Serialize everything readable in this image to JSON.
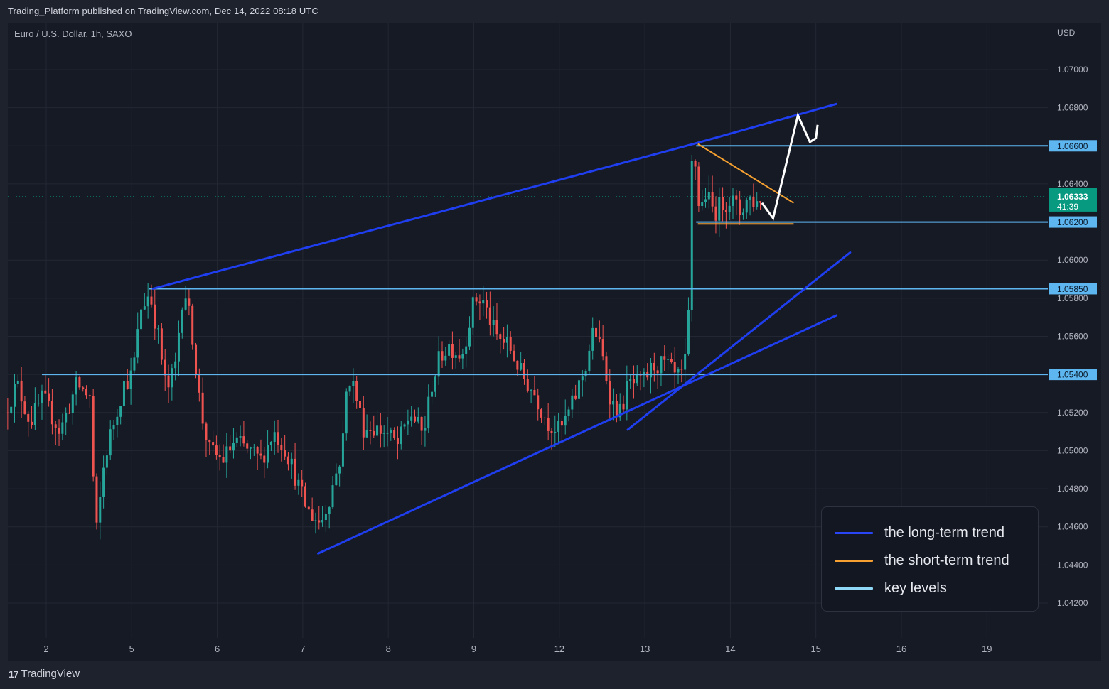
{
  "header": {
    "published": "Trading_Platform published on TradingView.com, Dec 14, 2022 08:18 UTC"
  },
  "chart_header": {
    "symbol": "Euro / U.S. Dollar, 1h, SAXO",
    "currency": "USD"
  },
  "footer": {
    "logo_text": "TradingView",
    "logo_mark": "17"
  },
  "colors": {
    "up": "#26a69a",
    "down": "#ef5350",
    "long_term": "#1f3ef0",
    "short_term": "#f5a030",
    "key_level": "#5eb6f0",
    "projection": "#ffffff",
    "price_tag": "#089981"
  },
  "legend": [
    {
      "label": "the long-term trend",
      "color": "#2945f5"
    },
    {
      "label": "the short-term trend",
      "color": "#f5a030"
    },
    {
      "label": "key levels",
      "color": "#90d8f8"
    }
  ],
  "chart_data": {
    "type": "candlestick",
    "title": "Euro / U.S. Dollar, 1h, SAXO",
    "ylabel": "USD",
    "ylim": [
      1.041,
      1.074
    ],
    "y_ticks": [
      "1.07000",
      "1.06800",
      "1.06600",
      "1.06400",
      "1.06200",
      "1.06000",
      "1.05800",
      "1.05600",
      "1.05400",
      "1.05200",
      "1.05000",
      "1.04800",
      "1.04600",
      "1.04400",
      "1.04200"
    ],
    "x_ticks": [
      {
        "label": "2",
        "d": 0
      },
      {
        "label": "5",
        "d": 1
      },
      {
        "label": "6",
        "d": 2
      },
      {
        "label": "7",
        "d": 3
      },
      {
        "label": "8",
        "d": 4
      },
      {
        "label": "9",
        "d": 5
      },
      {
        "label": "12",
        "d": 6
      },
      {
        "label": "13",
        "d": 7
      },
      {
        "label": "14",
        "d": 8
      },
      {
        "label": "15",
        "d": 9
      },
      {
        "label": "16",
        "d": 10
      },
      {
        "label": "19",
        "d": 11
      }
    ],
    "current_price": {
      "price": "1.06333",
      "countdown": "41:39",
      "value": 1.06333
    },
    "key_levels": [
      {
        "price": 1.066,
        "label": "1.06600",
        "from_d": 7.6
      },
      {
        "price": 1.062,
        "label": "1.06200",
        "from_d": 7.6
      },
      {
        "price": 1.0585,
        "label": "1.05850",
        "from_d": 1.2
      },
      {
        "price": 1.054,
        "label": "1.05400",
        "from_d": -0.05
      }
    ],
    "long_term_trend": [
      {
        "from": [
          1.25,
          1.0585
        ],
        "to": [
          7.57,
          1.0661
        ]
      },
      {
        "from": [
          7.57,
          1.0661
        ],
        "to": [
          9.24,
          1.0682
        ]
      },
      {
        "from": [
          3.18,
          1.0446
        ],
        "to": [
          9.24,
          1.0571
        ]
      },
      {
        "from": [
          6.8,
          1.0511
        ],
        "to": [
          9.4,
          1.0604
        ]
      }
    ],
    "short_term_trend": [
      {
        "from": [
          7.62,
          1.0661
        ],
        "to": [
          8.74,
          1.063
        ]
      },
      {
        "from": [
          7.62,
          1.0619
        ],
        "to": [
          8.74,
          1.0619
        ]
      }
    ],
    "projection": [
      [
        8.37,
        1.063
      ],
      [
        8.5,
        1.0622
      ],
      [
        8.79,
        1.0676
      ],
      [
        8.93,
        1.0662
      ],
      [
        9.0,
        1.0664
      ],
      [
        9.02,
        1.0671
      ]
    ],
    "series_path": [
      [
        -0.45,
        1.052
      ],
      [
        -0.3,
        1.0535
      ],
      [
        -0.15,
        1.0515
      ],
      [
        0.0,
        1.0528
      ],
      [
        0.2,
        1.051
      ],
      [
        0.4,
        1.0535
      ],
      [
        0.55,
        1.0528
      ],
      [
        0.6,
        1.0475
      ],
      [
        0.63,
        1.0458
      ],
      [
        0.72,
        1.0495
      ],
      [
        0.8,
        1.051
      ],
      [
        0.95,
        1.0535
      ],
      [
        1.05,
        1.054
      ],
      [
        1.15,
        1.0575
      ],
      [
        1.25,
        1.0583
      ],
      [
        1.35,
        1.056
      ],
      [
        1.45,
        1.053
      ],
      [
        1.55,
        1.0545
      ],
      [
        1.65,
        1.0588
      ],
      [
        1.75,
        1.056
      ],
      [
        1.85,
        1.052
      ],
      [
        1.95,
        1.05
      ],
      [
        2.1,
        1.0495
      ],
      [
        2.25,
        1.0505
      ],
      [
        2.4,
        1.05
      ],
      [
        2.55,
        1.0495
      ],
      [
        2.7,
        1.051
      ],
      [
        2.85,
        1.05
      ],
      [
        3.0,
        1.048
      ],
      [
        3.1,
        1.0468
      ],
      [
        3.25,
        1.0462
      ],
      [
        3.35,
        1.0475
      ],
      [
        3.5,
        1.05
      ],
      [
        3.55,
        1.053
      ],
      [
        3.6,
        1.054
      ],
      [
        3.75,
        1.0512
      ],
      [
        3.85,
        1.0512
      ],
      [
        4.0,
        1.051
      ],
      [
        4.15,
        1.0503
      ],
      [
        4.3,
        1.052
      ],
      [
        4.45,
        1.0508
      ],
      [
        4.55,
        1.0535
      ],
      [
        4.65,
        1.055
      ],
      [
        4.75,
        1.0555
      ],
      [
        4.9,
        1.055
      ],
      [
        5.05,
        1.058
      ],
      [
        5.15,
        1.0578
      ],
      [
        5.3,
        1.056
      ],
      [
        5.45,
        1.0555
      ],
      [
        5.6,
        1.054
      ],
      [
        5.75,
        1.053
      ],
      [
        5.9,
        1.0515
      ],
      [
        6.05,
        1.051
      ],
      [
        6.2,
        1.0525
      ],
      [
        6.35,
        1.0545
      ],
      [
        6.45,
        1.0565
      ],
      [
        6.55,
        1.0548
      ],
      [
        6.65,
        1.0525
      ],
      [
        6.75,
        1.052
      ],
      [
        6.85,
        1.0535
      ],
      [
        7.0,
        1.0535
      ],
      [
        7.15,
        1.0545
      ],
      [
        7.3,
        1.0545
      ],
      [
        7.4,
        1.0538
      ],
      [
        7.5,
        1.054
      ],
      [
        7.55,
        1.057
      ],
      [
        7.58,
        1.0648
      ],
      [
        7.62,
        1.0655
      ],
      [
        7.68,
        1.0625
      ],
      [
        7.75,
        1.0635
      ],
      [
        7.85,
        1.0625
      ],
      [
        7.95,
        1.063
      ],
      [
        8.05,
        1.0632
      ],
      [
        8.15,
        1.0625
      ],
      [
        8.25,
        1.0633
      ],
      [
        8.35,
        1.063
      ],
      [
        8.37,
        1.0633
      ]
    ]
  }
}
